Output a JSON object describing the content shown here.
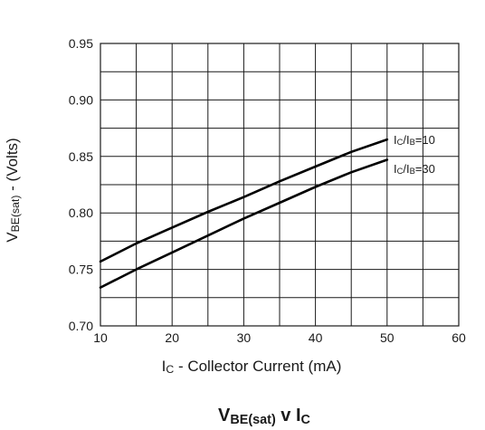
{
  "chart_data": {
    "type": "line",
    "caption": {
      "main1": "V",
      "sub1": "BE(sat)",
      "mid": " v I",
      "sub2": "C"
    },
    "xlabel": {
      "pre": "I",
      "sub": "C",
      "post": " - Collector Current (mA)"
    },
    "ylabel": {
      "pre": "V",
      "sub": "BE(sat)",
      "post": " - (Volts)"
    },
    "xlim": [
      10,
      60
    ],
    "ylim": [
      0.7,
      0.95
    ],
    "xticks": [
      "10",
      "20",
      "30",
      "40",
      "50",
      "60"
    ],
    "yticks": [
      "0.70",
      "0.75",
      "0.80",
      "0.85",
      "0.90",
      "0.95"
    ],
    "grid": true,
    "series": [
      {
        "name": "IC/IB=10",
        "label": {
          "pre": "I",
          "sub1": "C",
          "mid": "/I",
          "sub2": "B",
          "post": "=10"
        },
        "x": [
          10,
          15,
          20,
          25,
          30,
          35,
          40,
          45,
          50
        ],
        "y": [
          0.757,
          0.773,
          0.787,
          0.801,
          0.814,
          0.828,
          0.841,
          0.854,
          0.865
        ]
      },
      {
        "name": "IC/IB=30",
        "label": {
          "pre": "I",
          "sub1": "C",
          "mid": "/I",
          "sub2": "B",
          "post": "=30"
        },
        "x": [
          10,
          15,
          20,
          25,
          30,
          35,
          40,
          45,
          50
        ],
        "y": [
          0.734,
          0.75,
          0.765,
          0.78,
          0.795,
          0.809,
          0.823,
          0.836,
          0.847
        ]
      }
    ]
  }
}
